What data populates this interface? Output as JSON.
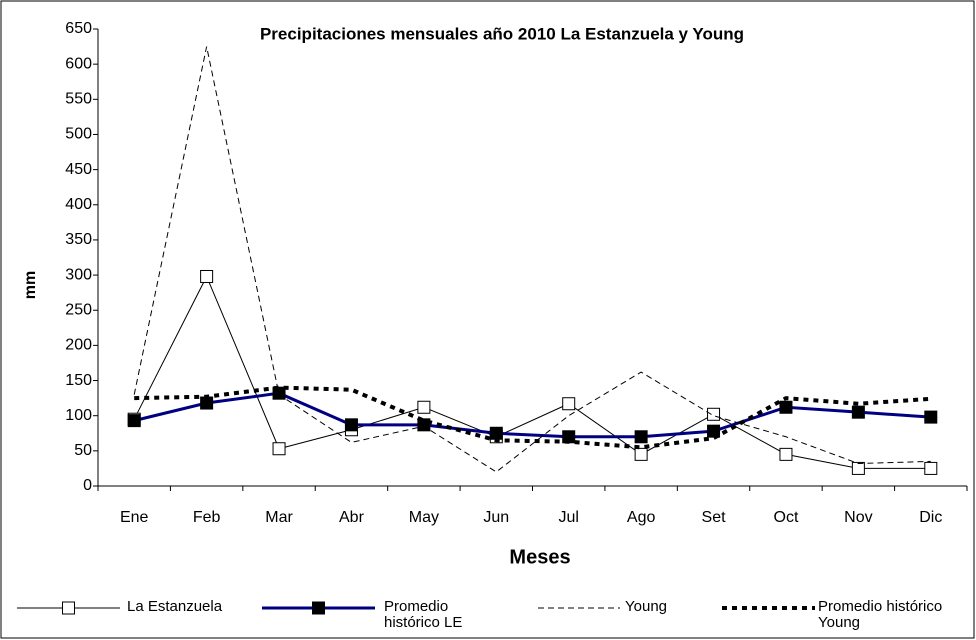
{
  "chart_data": {
    "type": "line",
    "title": "Precipitaciones mensuales año 2010 La Estanzuela y Young",
    "x_label": "Meses",
    "y_label": "mm",
    "categories": [
      "Ene",
      "Feb",
      "Mar",
      "Abr",
      "May",
      "Jun",
      "Jul",
      "Ago",
      "Set",
      "Oct",
      "Nov",
      "Dic"
    ],
    "ylim": [
      0,
      650
    ],
    "yticks": [
      0,
      50,
      100,
      150,
      200,
      250,
      300,
      350,
      400,
      450,
      500,
      550,
      600,
      650
    ],
    "series": [
      {
        "name": "La Estanzuela",
        "color": "#000000",
        "line_style": "solid",
        "line_width": 1,
        "marker": "hollow-square",
        "values": [
          95,
          298,
          53,
          80,
          112,
          70,
          117,
          45,
          102,
          45,
          25,
          25
        ]
      },
      {
        "name": "Promedio histórico LE",
        "color": "#000080",
        "line_style": "solid",
        "line_width": 3,
        "marker": "filled-square",
        "values": [
          93,
          118,
          132,
          87,
          87,
          75,
          70,
          70,
          78,
          112,
          105,
          98
        ]
      },
      {
        "name": "Young",
        "color": "#000000",
        "line_style": "dashed",
        "line_width": 1,
        "marker": "none",
        "values": [
          130,
          625,
          130,
          62,
          85,
          20,
          100,
          162,
          100,
          70,
          32,
          35
        ]
      },
      {
        "name": "Promedio histórico Young",
        "color": "#000000",
        "line_style": "dotted",
        "line_width": 4,
        "marker": "none",
        "values": [
          125,
          127,
          140,
          137,
          93,
          65,
          63,
          55,
          68,
          125,
          117,
          124
        ]
      }
    ]
  }
}
